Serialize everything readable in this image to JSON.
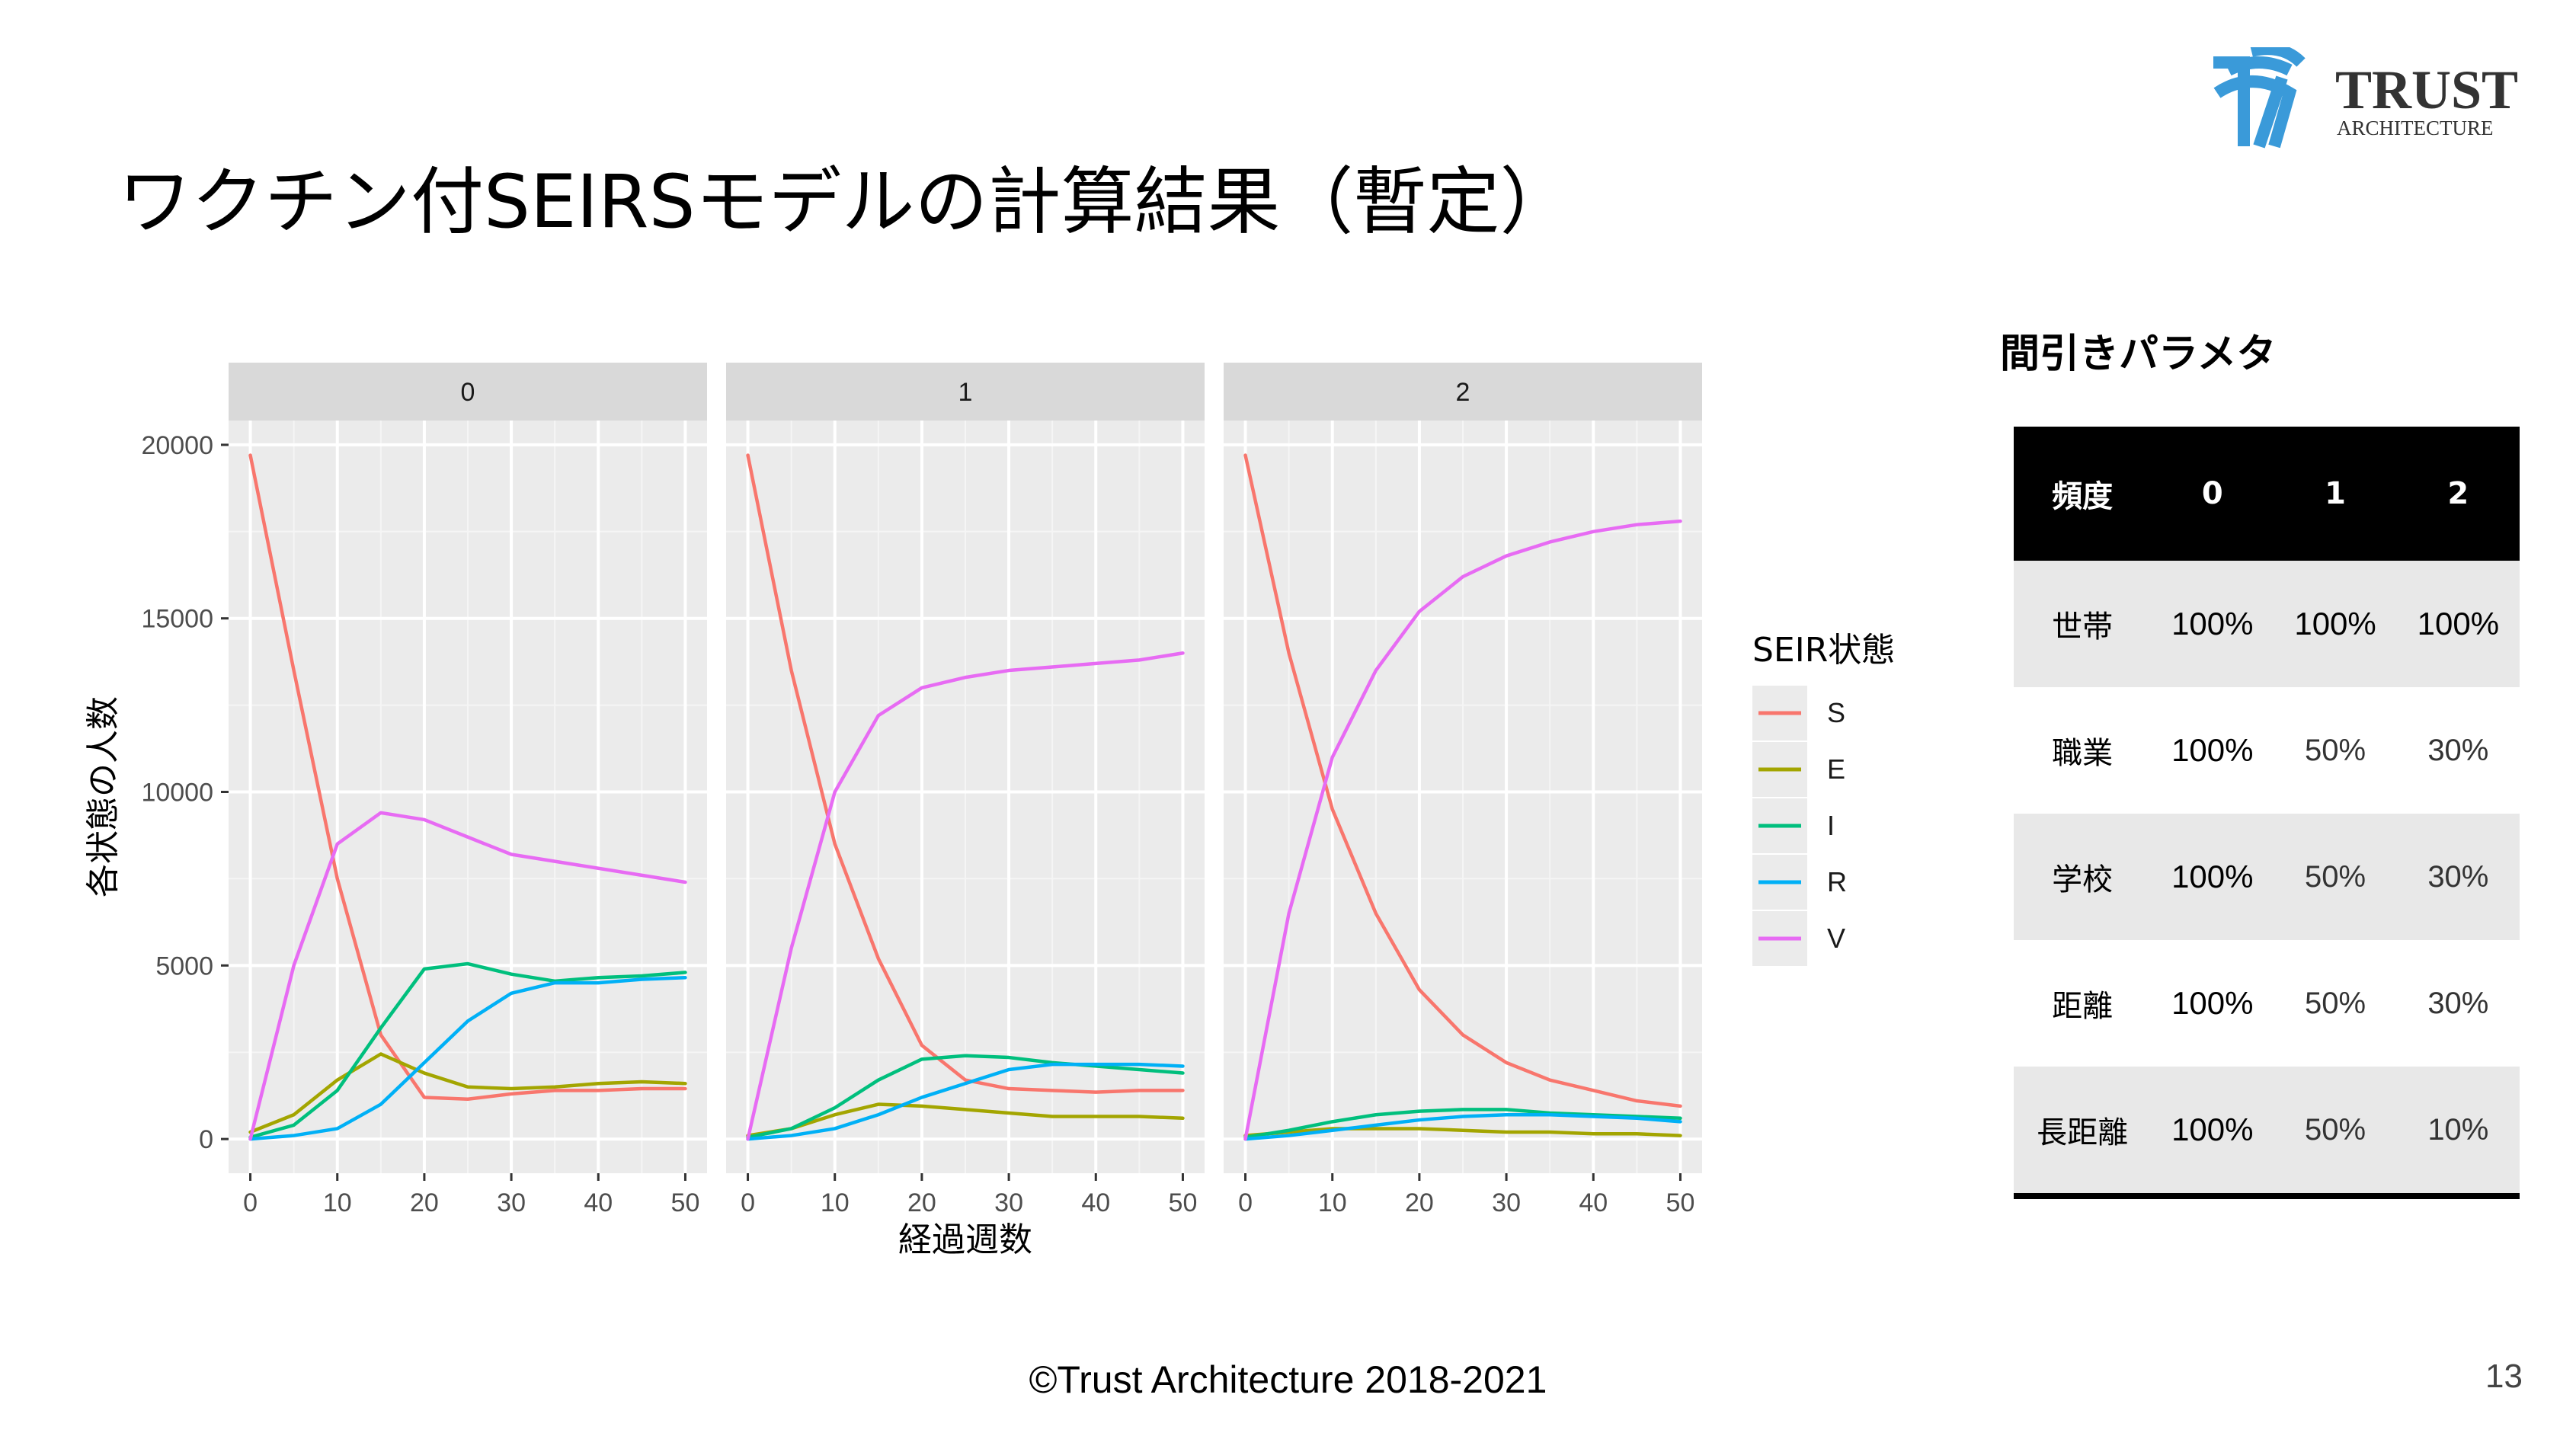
{
  "slide": {
    "title": "ワクチン付SEIRSモデルの計算結果（暫定）",
    "footer": "©Trust Architecture 2018-2021",
    "page_number": "13",
    "logo": {
      "word": "TRUST",
      "sub": "ARCHITECTURE",
      "color": "#3a9ad9"
    }
  },
  "params": {
    "title": "間引きパラメタ",
    "header": [
      "頻度",
      "0",
      "1",
      "2"
    ],
    "rows": [
      {
        "label": "世帯",
        "values": [
          "100%",
          "100%",
          "100%"
        ]
      },
      {
        "label": "職業",
        "values": [
          "100%",
          "50%",
          "30%"
        ]
      },
      {
        "label": "学校",
        "values": [
          "100%",
          "50%",
          "30%"
        ]
      },
      {
        "label": "距離",
        "values": [
          "100%",
          "50%",
          "30%"
        ]
      },
      {
        "label": "長距離",
        "values": [
          "100%",
          "50%",
          "10%"
        ]
      }
    ]
  },
  "chart_data": {
    "type": "line",
    "xlabel": "経過週数",
    "ylabel": "各状態の人数",
    "xlim": [
      0,
      50
    ],
    "ylim": [
      0,
      20000
    ],
    "xticks": [
      0,
      10,
      20,
      30,
      40,
      50
    ],
    "yticks": [
      0,
      5000,
      10000,
      15000,
      20000
    ],
    "ytick_labels": [
      "0",
      "5000",
      "10000",
      "15000",
      "20000"
    ],
    "grid": true,
    "legend": {
      "title": "SEIR状態",
      "position": "right"
    },
    "x": [
      0,
      5,
      10,
      15,
      20,
      25,
      30,
      35,
      40,
      45,
      50
    ],
    "series_meta": [
      {
        "name": "S",
        "color": "#f8766d"
      },
      {
        "name": "E",
        "color": "#a3a500"
      },
      {
        "name": "I",
        "color": "#00bf7d"
      },
      {
        "name": "R",
        "color": "#00b0f6"
      },
      {
        "name": "V",
        "color": "#e76bf3"
      }
    ],
    "panels": [
      {
        "label": "0",
        "series": [
          {
            "name": "S",
            "values": [
              19700,
              13500,
              7500,
              3000,
              1200,
              1150,
              1300,
              1400,
              1400,
              1450,
              1450
            ]
          },
          {
            "name": "E",
            "values": [
              200,
              700,
              1700,
              2450,
              1900,
              1500,
              1450,
              1500,
              1600,
              1650,
              1600
            ]
          },
          {
            "name": "I",
            "values": [
              50,
              400,
              1400,
              3200,
              4900,
              5050,
              4750,
              4550,
              4650,
              4700,
              4800
            ]
          },
          {
            "name": "R",
            "values": [
              0,
              100,
              300,
              1000,
              2200,
              3400,
              4200,
              4500,
              4500,
              4600,
              4650
            ]
          },
          {
            "name": "V",
            "values": [
              0,
              5000,
              8500,
              9400,
              9200,
              8700,
              8200,
              8000,
              7800,
              7600,
              7400
            ]
          }
        ]
      },
      {
        "label": "1",
        "series": [
          {
            "name": "S",
            "values": [
              19700,
              13500,
              8500,
              5200,
              2700,
              1700,
              1450,
              1400,
              1350,
              1400,
              1400
            ]
          },
          {
            "name": "E",
            "values": [
              100,
              300,
              700,
              1000,
              950,
              850,
              750,
              650,
              650,
              650,
              600
            ]
          },
          {
            "name": "I",
            "values": [
              50,
              300,
              900,
              1700,
              2300,
              2400,
              2350,
              2200,
              2100,
              2000,
              1900
            ]
          },
          {
            "name": "R",
            "values": [
              0,
              100,
              300,
              700,
              1200,
              1600,
              2000,
              2150,
              2150,
              2150,
              2100
            ]
          },
          {
            "name": "V",
            "values": [
              0,
              5500,
              10000,
              12200,
              13000,
              13300,
              13500,
              13600,
              13700,
              13800,
              14000
            ]
          }
        ]
      },
      {
        "label": "2",
        "series": [
          {
            "name": "S",
            "values": [
              19700,
              14000,
              9500,
              6500,
              4300,
              3000,
              2200,
              1700,
              1400,
              1100,
              950
            ]
          },
          {
            "name": "E",
            "values": [
              100,
              200,
              300,
              300,
              300,
              250,
              200,
              200,
              150,
              150,
              100
            ]
          },
          {
            "name": "I",
            "values": [
              50,
              250,
              500,
              700,
              800,
              850,
              850,
              750,
              700,
              650,
              600
            ]
          },
          {
            "name": "R",
            "values": [
              0,
              100,
              250,
              400,
              550,
              650,
              700,
              700,
              650,
              600,
              500
            ]
          },
          {
            "name": "V",
            "values": [
              0,
              6500,
              11000,
              13500,
              15200,
              16200,
              16800,
              17200,
              17500,
              17700,
              17800
            ]
          }
        ]
      }
    ]
  }
}
